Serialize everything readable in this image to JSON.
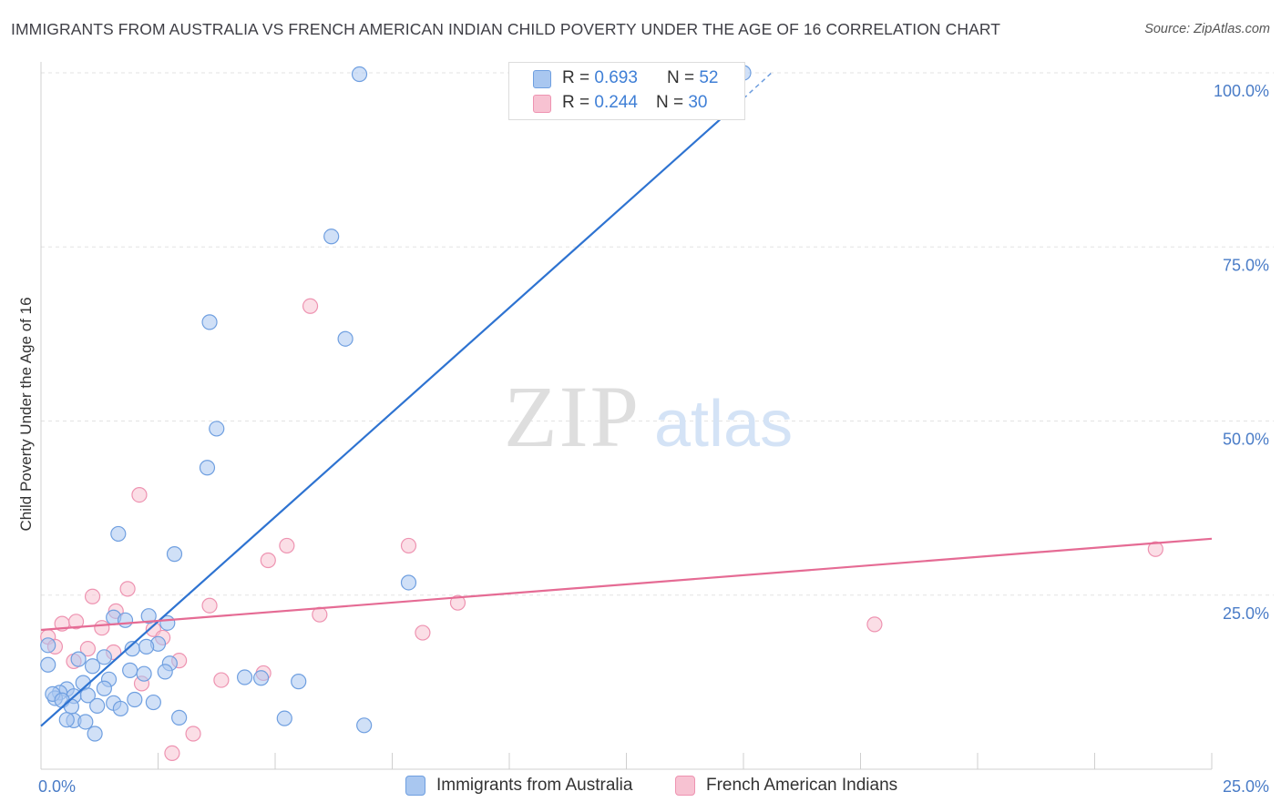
{
  "title": "IMMIGRANTS FROM AUSTRALIA VS FRENCH AMERICAN INDIAN CHILD POVERTY UNDER THE AGE OF 16 CORRELATION CHART",
  "source": "Source: ZipAtlas.com",
  "watermark": {
    "zip": "ZIP",
    "atlas": "atlas"
  },
  "legend_top": {
    "rows": [
      {
        "r_label": "R =",
        "r_value": "0.693",
        "n_label": "N =",
        "n_value": "52",
        "color": "#a9c7f0",
        "border": "#6f9fe0"
      },
      {
        "r_label": "R =",
        "r_value": "0.244",
        "n_label": "N =",
        "n_value": "30",
        "color": "#f7c2d2",
        "border": "#ee93b1"
      }
    ]
  },
  "colors": {
    "blue_fill": "#a9c7f0",
    "blue_stroke": "#6f9fe0",
    "blue_line": "#2e73d1",
    "pink_fill": "#f7c2d2",
    "pink_stroke": "#ee93b1",
    "pink_line": "#e56b94",
    "grid": "#e3e3e3",
    "axis_text": "#4a7cc7"
  },
  "chart_data": {
    "type": "scatter",
    "title": "IMMIGRANTS FROM AUSTRALIA VS FRENCH AMERICAN INDIAN CHILD POVERTY UNDER THE AGE OF 16 CORRELATION CHART",
    "xlabel": "",
    "ylabel": "Child Poverty Under the Age of 16",
    "xlim": [
      0,
      25
    ],
    "ylim": [
      0,
      100
    ],
    "x_tick_labels": [
      {
        "value": 0,
        "label": "0.0%"
      },
      {
        "value": 25,
        "label": "25.0%"
      }
    ],
    "y_tick_labels": [
      {
        "value": 25,
        "label": "25.0%"
      },
      {
        "value": 50,
        "label": "50.0%"
      },
      {
        "value": 75,
        "label": "75.0%"
      },
      {
        "value": 100,
        "label": "100.0%"
      }
    ],
    "grid": true,
    "legend_position": "bottom",
    "series": [
      {
        "name": "Immigrants from Australia",
        "color": "#a9c7f0",
        "trend": {
          "x0": 0,
          "y0": 6.2,
          "x1": 15.6,
          "y1": 100
        },
        "trend_dashed_extension": {
          "x0": 15.0,
          "y0": 96.3,
          "x1": 15.6,
          "y1": 100
        },
        "points": [
          {
            "x": 6.8,
            "y": 99.8
          },
          {
            "x": 15.0,
            "y": 100.0
          },
          {
            "x": 6.2,
            "y": 76.5
          },
          {
            "x": 3.6,
            "y": 64.2
          },
          {
            "x": 6.5,
            "y": 61.8
          },
          {
            "x": 3.75,
            "y": 48.9
          },
          {
            "x": 3.55,
            "y": 43.3
          },
          {
            "x": 1.65,
            "y": 33.8
          },
          {
            "x": 2.85,
            "y": 30.9
          },
          {
            "x": 7.85,
            "y": 26.8
          },
          {
            "x": 2.3,
            "y": 22.0
          },
          {
            "x": 1.55,
            "y": 21.8
          },
          {
            "x": 1.8,
            "y": 21.4
          },
          {
            "x": 2.7,
            "y": 21.0
          },
          {
            "x": 2.5,
            "y": 18.0
          },
          {
            "x": 1.95,
            "y": 17.3
          },
          {
            "x": 2.25,
            "y": 17.6
          },
          {
            "x": 0.15,
            "y": 17.8
          },
          {
            "x": 1.35,
            "y": 16.1
          },
          {
            "x": 0.8,
            "y": 15.8
          },
          {
            "x": 2.75,
            "y": 15.2
          },
          {
            "x": 1.1,
            "y": 14.8
          },
          {
            "x": 0.15,
            "y": 15.0
          },
          {
            "x": 1.9,
            "y": 14.2
          },
          {
            "x": 2.2,
            "y": 13.7
          },
          {
            "x": 2.65,
            "y": 14.0
          },
          {
            "x": 1.45,
            "y": 12.9
          },
          {
            "x": 0.9,
            "y": 12.4
          },
          {
            "x": 4.35,
            "y": 13.2
          },
          {
            "x": 4.7,
            "y": 13.1
          },
          {
            "x": 5.5,
            "y": 12.6
          },
          {
            "x": 0.55,
            "y": 11.5
          },
          {
            "x": 0.4,
            "y": 11.0
          },
          {
            "x": 1.35,
            "y": 11.6
          },
          {
            "x": 0.7,
            "y": 10.5
          },
          {
            "x": 0.3,
            "y": 10.2
          },
          {
            "x": 1.0,
            "y": 10.6
          },
          {
            "x": 0.25,
            "y": 10.8
          },
          {
            "x": 0.45,
            "y": 9.9
          },
          {
            "x": 2.0,
            "y": 10.0
          },
          {
            "x": 1.55,
            "y": 9.5
          },
          {
            "x": 2.4,
            "y": 9.6
          },
          {
            "x": 0.65,
            "y": 9.0
          },
          {
            "x": 1.2,
            "y": 9.1
          },
          {
            "x": 1.7,
            "y": 8.7
          },
          {
            "x": 0.7,
            "y": 7.0
          },
          {
            "x": 0.95,
            "y": 6.8
          },
          {
            "x": 2.95,
            "y": 7.4
          },
          {
            "x": 5.2,
            "y": 7.3
          },
          {
            "x": 6.9,
            "y": 6.3
          },
          {
            "x": 1.15,
            "y": 5.1
          },
          {
            "x": 0.55,
            "y": 7.1
          }
        ]
      },
      {
        "name": "French American Indians",
        "color": "#f7c2d2",
        "trend": {
          "x0": 0,
          "y0": 20.0,
          "x1": 25,
          "y1": 33.1
        },
        "points": [
          {
            "x": 5.75,
            "y": 66.5
          },
          {
            "x": 2.1,
            "y": 39.4
          },
          {
            "x": 5.25,
            "y": 32.1
          },
          {
            "x": 7.85,
            "y": 32.1
          },
          {
            "x": 4.85,
            "y": 30.0
          },
          {
            "x": 23.8,
            "y": 31.6
          },
          {
            "x": 1.85,
            "y": 25.9
          },
          {
            "x": 1.1,
            "y": 24.8
          },
          {
            "x": 8.9,
            "y": 23.9
          },
          {
            "x": 3.6,
            "y": 23.5
          },
          {
            "x": 1.6,
            "y": 22.7
          },
          {
            "x": 5.95,
            "y": 22.2
          },
          {
            "x": 0.45,
            "y": 20.9
          },
          {
            "x": 0.75,
            "y": 21.2
          },
          {
            "x": 17.8,
            "y": 20.8
          },
          {
            "x": 1.3,
            "y": 20.3
          },
          {
            "x": 2.4,
            "y": 20.1
          },
          {
            "x": 8.15,
            "y": 19.6
          },
          {
            "x": 0.15,
            "y": 19.0
          },
          {
            "x": 2.6,
            "y": 18.9
          },
          {
            "x": 0.3,
            "y": 17.6
          },
          {
            "x": 1.0,
            "y": 17.3
          },
          {
            "x": 1.55,
            "y": 16.8
          },
          {
            "x": 0.7,
            "y": 15.5
          },
          {
            "x": 2.95,
            "y": 15.6
          },
          {
            "x": 4.75,
            "y": 13.8
          },
          {
            "x": 3.85,
            "y": 12.8
          },
          {
            "x": 2.15,
            "y": 12.3
          },
          {
            "x": 3.25,
            "y": 5.1
          },
          {
            "x": 2.8,
            "y": 2.3
          }
        ]
      }
    ]
  }
}
